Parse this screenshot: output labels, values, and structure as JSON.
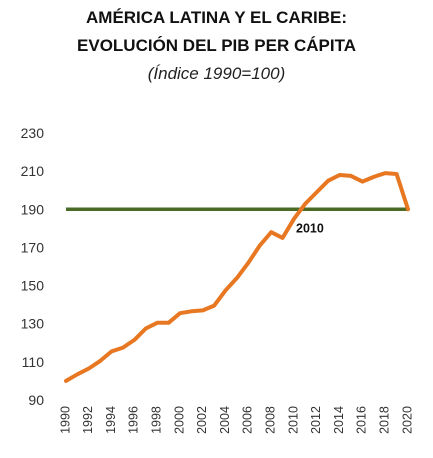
{
  "title_line1": "AMÉRICA LATINA Y EL CARIBE:",
  "title_line2": "EVOLUCIÓN DEL PIB PER CÁPITA",
  "subtitle": "(Índice 1990=100)",
  "chart_data": {
    "type": "line",
    "x": [
      1990,
      1991,
      1992,
      1993,
      1994,
      1995,
      1996,
      1997,
      1998,
      1999,
      2000,
      2001,
      2002,
      2003,
      2004,
      2005,
      2006,
      2007,
      2008,
      2009,
      2010,
      2011,
      2012,
      2013,
      2014,
      2015,
      2016,
      2017,
      2018,
      2019,
      2020
    ],
    "series": [
      {
        "values": [
          100,
          103.5,
          106.5,
          110.5,
          115.5,
          117.5,
          121.5,
          127.5,
          130.5,
          130.5,
          135.5,
          136.5,
          137,
          139.5,
          147.5,
          154,
          162,
          171,
          178,
          175,
          185,
          193,
          199,
          205,
          208,
          207.5,
          204.5,
          207,
          209,
          208.5,
          190
        ],
        "color": "#E87722"
      }
    ],
    "reference_line": {
      "value": 190,
      "color": "#4A6B26"
    },
    "annotation": {
      "text": "2010",
      "x": 2010,
      "y": 190
    },
    "ylim": [
      90,
      230
    ],
    "yticks": [
      90,
      110,
      130,
      150,
      170,
      190,
      210,
      230
    ],
    "xticks": [
      "1990",
      "1992",
      "1994",
      "1996",
      "1998",
      "2000",
      "2002",
      "2004",
      "2006",
      "2008",
      "2010",
      "2012",
      "2014",
      "2016",
      "2018",
      "2020"
    ],
    "xlim": [
      1990,
      2020
    ],
    "grid": false
  }
}
